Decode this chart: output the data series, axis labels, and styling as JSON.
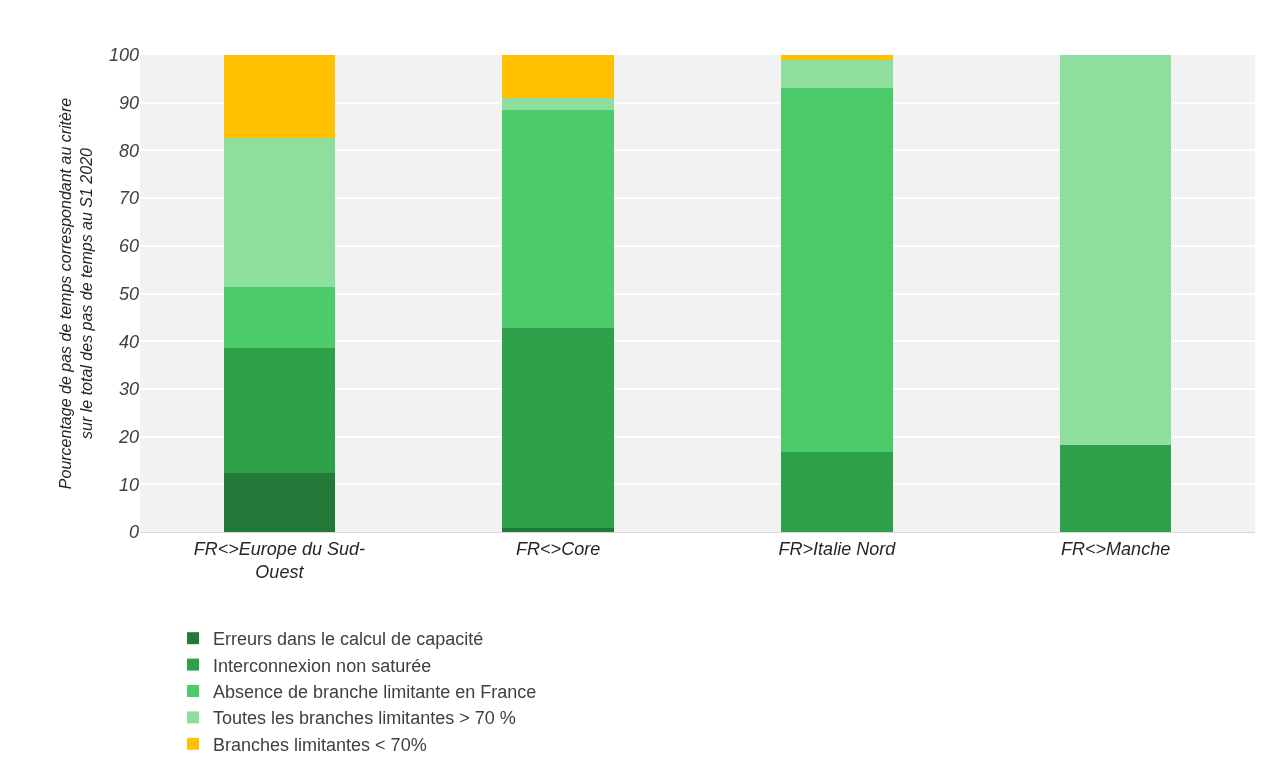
{
  "chart_data": {
    "type": "bar",
    "stacked": true,
    "ylabel": "Pourcentage de pas de temps correspondant au critère\nsur le total des pas de temps au S1 2020",
    "categories": [
      "FR<>Europe du Sud-\nOuest",
      "FR<>Core",
      "FR>Italie Nord",
      "FR<>Manche"
    ],
    "series": [
      {
        "name": "Erreurs dans le calcul de capacité",
        "color": "#237a38",
        "values": [
          12.4,
          0.9,
          0,
          0
        ]
      },
      {
        "name": "Interconnexion non saturée",
        "color": "#2ea04a",
        "values": [
          26.2,
          41.8,
          16.8,
          18.3
        ]
      },
      {
        "name": "Absence de branche limitante en France",
        "color": "#4ccb6a",
        "values": [
          12.8,
          45.8,
          76.2,
          0
        ]
      },
      {
        "name": "Toutes les branches limitantes > 70 %",
        "color": "#8ede9e",
        "values": [
          31.3,
          2.5,
          6,
          81.7
        ]
      },
      {
        "name": "Branches limitantes < 70%",
        "color": "#ffc000",
        "values": [
          17.3,
          9,
          1,
          0
        ]
      }
    ],
    "ylim": [
      0,
      100
    ],
    "yticks": [
      0,
      10,
      20,
      30,
      40,
      50,
      60,
      70,
      80,
      90,
      100
    ],
    "grid": "y",
    "legend": "bottom"
  }
}
